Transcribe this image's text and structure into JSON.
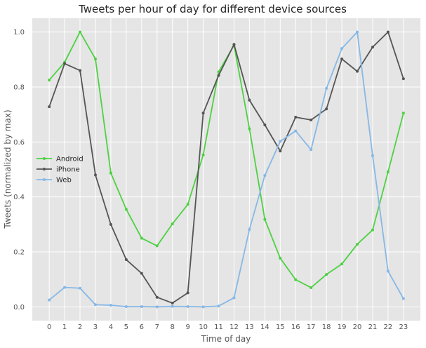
{
  "chart_data": {
    "type": "line",
    "title": "Tweets per hour of day for different device sources",
    "xlabel": "Time of day",
    "ylabel": "Tweets (normalized by max)",
    "x": [
      0,
      1,
      2,
      3,
      4,
      5,
      6,
      7,
      8,
      9,
      10,
      11,
      12,
      13,
      14,
      15,
      16,
      17,
      18,
      19,
      20,
      21,
      22,
      23
    ],
    "xlim": [
      -1.1,
      24.1
    ],
    "ylim": [
      -0.05,
      1.05
    ],
    "yticks": [
      "0.0",
      "0.2",
      "0.4",
      "0.6",
      "0.8",
      "1.0"
    ],
    "grid": true,
    "legend_position": "center-left",
    "series": [
      {
        "name": "Android",
        "color": "#4dd142",
        "values": [
          0.825,
          0.89,
          1.0,
          0.902,
          0.487,
          0.355,
          0.25,
          0.222,
          0.302,
          0.373,
          0.553,
          0.855,
          0.952,
          0.648,
          0.318,
          0.177,
          0.099,
          0.07,
          0.118,
          0.156,
          0.228,
          0.28,
          0.491,
          0.705
        ]
      },
      {
        "name": "iPhone",
        "color": "#555555",
        "values": [
          0.728,
          0.885,
          0.86,
          0.48,
          0.3,
          0.172,
          0.122,
          0.035,
          0.014,
          0.051,
          0.705,
          0.842,
          0.955,
          0.752,
          0.662,
          0.567,
          0.69,
          0.68,
          0.72,
          0.902,
          0.857,
          0.945,
          1.0,
          0.83
        ]
      },
      {
        "name": "Web",
        "color": "#86b8e6",
        "values": [
          0.025,
          0.071,
          0.068,
          0.008,
          0.006,
          0.001,
          0.001,
          0.0,
          0.002,
          0.001,
          0.0,
          0.003,
          0.033,
          0.282,
          0.478,
          0.602,
          0.64,
          0.572,
          0.795,
          0.94,
          1.0,
          0.55,
          0.13,
          0.03
        ]
      }
    ]
  }
}
